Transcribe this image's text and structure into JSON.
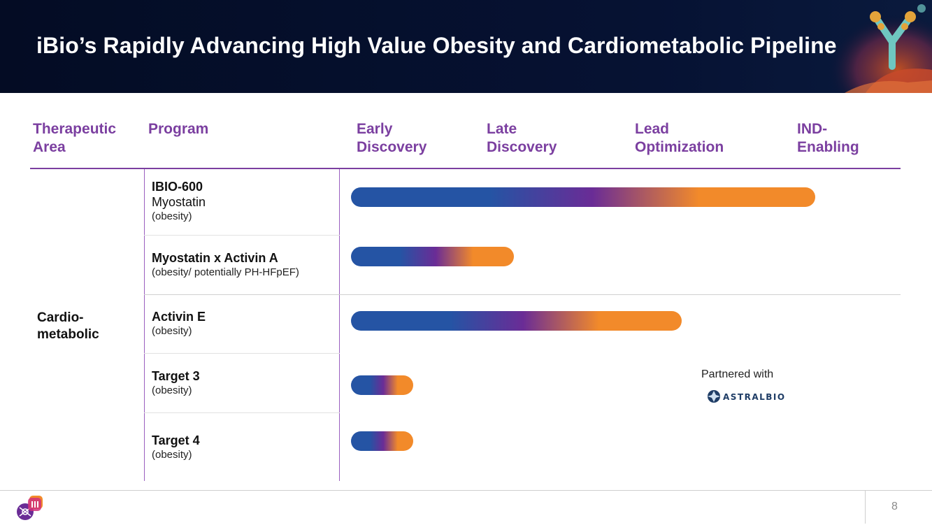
{
  "title": "iBio’s Rapidly Advancing High Value Obesity and Cardiometabolic Pipeline",
  "columns": {
    "therapeutic_area": [
      "Therapeutic",
      "Area"
    ],
    "program": "Program",
    "stage1": [
      "Early",
      "Discovery"
    ],
    "stage2": [
      "Late",
      "Discovery"
    ],
    "stage3": [
      "Lead",
      "Optimization"
    ],
    "stage4": [
      "IND-",
      "Enabling"
    ]
  },
  "area": [
    "Cardio-",
    "metabolic"
  ],
  "programs": [
    {
      "name": "IBIO-600",
      "target": "Myostatin",
      "note": "(obesity)",
      "progress": 0.97
    },
    {
      "name": "Myostatin x Activin A",
      "note": "(obesity/ potentially PH-HFpEF)",
      "progress": 0.34
    },
    {
      "name": "Activin E",
      "note": "(obesity)",
      "progress": 0.69
    },
    {
      "name": "Target 3",
      "note": "(obesity)",
      "progress": 0.13
    },
    {
      "name": "Target 4",
      "note": "(obesity)",
      "progress": 0.13
    }
  ],
  "partner": {
    "label": "Partnered with",
    "logo_text": "ASTRALBIO"
  },
  "page_number": "8",
  "colors": {
    "accent_purple": "#7b3fa0",
    "bar_blue": "#2554a4",
    "bar_purple": "#6a2c96",
    "bar_orange": "#f28a2a",
    "header_bg": "#061233"
  }
}
